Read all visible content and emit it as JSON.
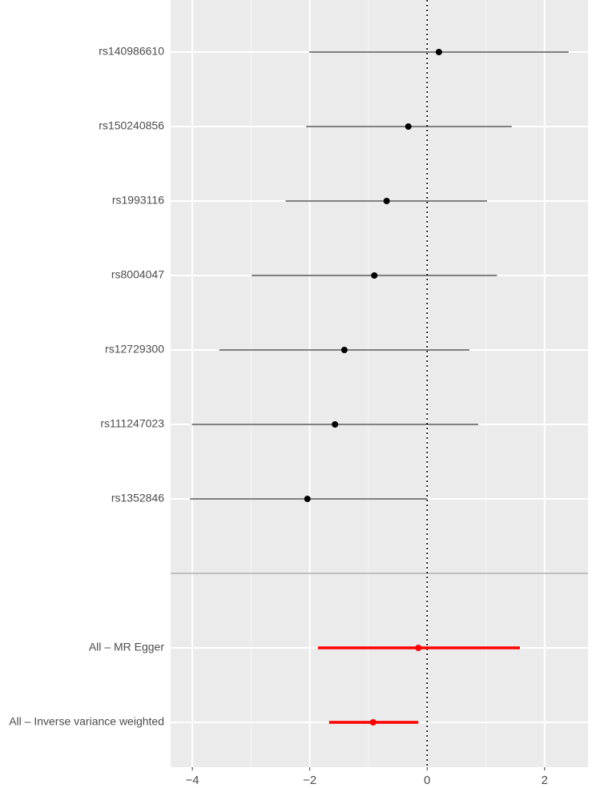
{
  "chart_data": {
    "type": "forest",
    "categories": [
      "rs140986610",
      "rs150240856",
      "rs1993116",
      "rs8004047",
      "rs12729300",
      "rs111247023",
      "rs1352846",
      null,
      "All – MR Egger",
      "All – Inverse variance weighted"
    ],
    "values": [
      0.2,
      -0.32,
      -0.69,
      -0.9,
      -1.41,
      -1.57,
      -2.04,
      null,
      -0.15,
      -0.92
    ],
    "lower": [
      -2.01,
      -2.06,
      -2.41,
      -2.99,
      -3.54,
      -4.01,
      -4.04,
      null,
      -1.86,
      -1.67
    ],
    "upper": [
      2.41,
      1.44,
      1.02,
      1.19,
      0.72,
      0.87,
      0.0,
      null,
      1.58,
      -0.15
    ],
    "colors": [
      "#000000",
      "#000000",
      "#000000",
      "#000000",
      "#000000",
      "#000000",
      "#000000",
      null,
      "#ff0000",
      "#ff0000"
    ],
    "xlim": [
      -4.37,
      2.74
    ],
    "xticks": [
      {
        "value": -4,
        "label": "−4"
      },
      {
        "value": -2,
        "label": "−2"
      },
      0,
      2
    ],
    "xminor": [
      -3,
      -1,
      1
    ],
    "reference_line": 0,
    "grid": true
  }
}
